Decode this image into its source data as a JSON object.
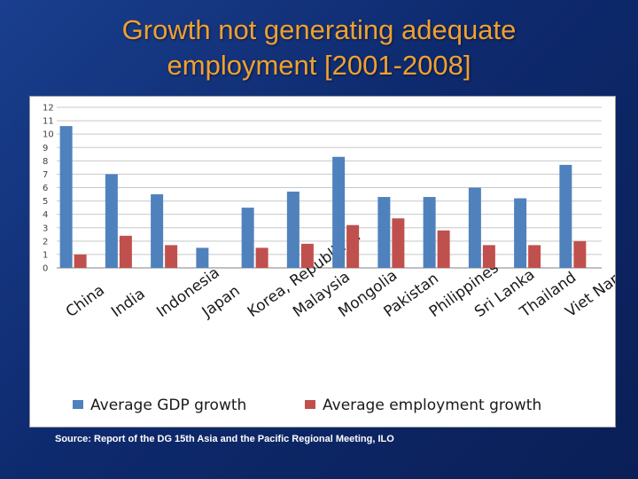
{
  "title_line1": "Growth not generating adequate",
  "title_line2": "employment [2001-2008]",
  "source": "Source: Report of the DG 15th Asia and the Pacific Regional Meeting, ILO",
  "colors": {
    "title": "#f0a030",
    "gdp": "#4f81bd",
    "employment": "#c0504d"
  },
  "chart_data": {
    "type": "bar",
    "categories": [
      "China",
      "India",
      "Indonesia",
      "Japan",
      "Korea, Republic of",
      "Malaysia",
      "Mongolia",
      "Pakistan",
      "Philippines",
      "Sri Lanka",
      "Thailand",
      "Viet Nam"
    ],
    "series": [
      {
        "name": "Average GDP growth",
        "values": [
          10.6,
          7.0,
          5.5,
          1.5,
          4.5,
          5.7,
          8.3,
          5.3,
          5.3,
          6.0,
          5.2,
          7.7
        ]
      },
      {
        "name": "Average employment growth",
        "values": [
          1.0,
          2.4,
          1.7,
          0,
          1.5,
          1.8,
          3.2,
          3.7,
          2.8,
          1.7,
          1.7,
          2.0
        ]
      }
    ],
    "yticks": [
      0,
      1,
      2,
      3,
      4,
      5,
      6,
      7,
      8,
      9,
      10,
      11,
      12
    ],
    "ylim": [
      0,
      12
    ],
    "grid": true,
    "legend_position": "bottom"
  }
}
